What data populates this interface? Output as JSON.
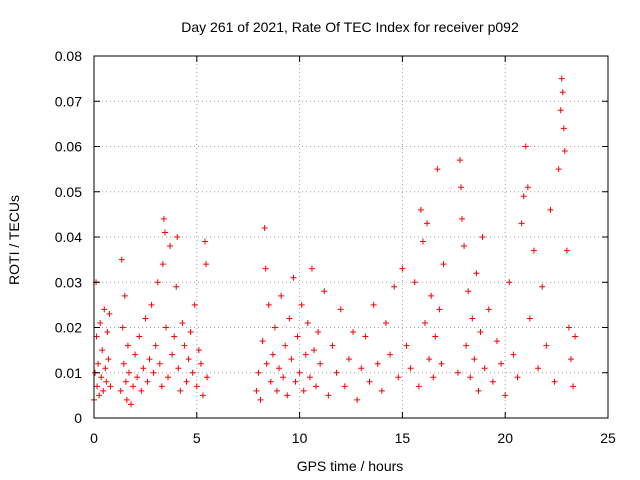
{
  "chart_data": {
    "type": "scatter",
    "title": "Day 261 of 2021, Rate Of TEC Index for receiver p092",
    "xlabel": "GPS time / hours",
    "ylabel": "ROTI / TECUs",
    "xlim": [
      0,
      25
    ],
    "ylim": [
      0,
      0.08
    ],
    "xticks": [
      0,
      5,
      10,
      15,
      20,
      25
    ],
    "xtick_labels": [
      "0",
      "5",
      "10",
      "15",
      "20",
      "25"
    ],
    "yticks": [
      0,
      0.01,
      0.02,
      0.03,
      0.04,
      0.05,
      0.06,
      0.07,
      0.08
    ],
    "ytick_labels": [
      "0",
      "0.01",
      "0.02",
      "0.03",
      "0.04",
      "0.05",
      "0.06",
      "0.07",
      "0.08"
    ],
    "grid": true,
    "marker": "+",
    "color": "#ff0000",
    "series": [
      {
        "name": "ROTI",
        "points": [
          [
            0.0,
            0.004
          ],
          [
            0.05,
            0.01
          ],
          [
            0.1,
            0.03
          ],
          [
            0.12,
            0.018
          ],
          [
            0.15,
            0.007
          ],
          [
            0.2,
            0.012
          ],
          [
            0.25,
            0.005
          ],
          [
            0.3,
            0.021
          ],
          [
            0.35,
            0.009
          ],
          [
            0.4,
            0.015
          ],
          [
            0.45,
            0.006
          ],
          [
            0.5,
            0.024
          ],
          [
            0.55,
            0.011
          ],
          [
            0.6,
            0.008
          ],
          [
            0.65,
            0.019
          ],
          [
            0.7,
            0.013
          ],
          [
            0.75,
            0.023
          ],
          [
            0.8,
            0.007
          ],
          [
            1.3,
            0.006
          ],
          [
            1.35,
            0.035
          ],
          [
            1.4,
            0.02
          ],
          [
            1.45,
            0.012
          ],
          [
            1.5,
            0.027
          ],
          [
            1.55,
            0.008
          ],
          [
            1.6,
            0.004
          ],
          [
            1.65,
            0.016
          ],
          [
            1.7,
            0.01
          ],
          [
            1.8,
            0.003
          ],
          [
            1.9,
            0.007
          ],
          [
            2.0,
            0.014
          ],
          [
            2.1,
            0.009
          ],
          [
            2.2,
            0.018
          ],
          [
            2.3,
            0.006
          ],
          [
            2.4,
            0.011
          ],
          [
            2.5,
            0.022
          ],
          [
            2.6,
            0.008
          ],
          [
            2.7,
            0.013
          ],
          [
            2.8,
            0.025
          ],
          [
            2.9,
            0.01
          ],
          [
            3.0,
            0.016
          ],
          [
            3.1,
            0.03
          ],
          [
            3.2,
            0.012
          ],
          [
            3.3,
            0.007
          ],
          [
            3.35,
            0.034
          ],
          [
            3.4,
            0.044
          ],
          [
            3.45,
            0.041
          ],
          [
            3.5,
            0.02
          ],
          [
            3.6,
            0.009
          ],
          [
            3.7,
            0.038
          ],
          [
            3.8,
            0.014
          ],
          [
            3.9,
            0.018
          ],
          [
            4.0,
            0.029
          ],
          [
            4.05,
            0.04
          ],
          [
            4.1,
            0.011
          ],
          [
            4.2,
            0.006
          ],
          [
            4.3,
            0.021
          ],
          [
            4.4,
            0.016
          ],
          [
            4.5,
            0.008
          ],
          [
            4.6,
            0.013
          ],
          [
            4.7,
            0.019
          ],
          [
            4.8,
            0.01
          ],
          [
            4.9,
            0.025
          ],
          [
            5.0,
            0.007
          ],
          [
            5.1,
            0.015
          ],
          [
            5.2,
            0.012
          ],
          [
            5.3,
            0.005
          ],
          [
            5.4,
            0.039
          ],
          [
            5.45,
            0.034
          ],
          [
            5.5,
            0.009
          ],
          [
            7.9,
            0.006
          ],
          [
            8.0,
            0.01
          ],
          [
            8.1,
            0.004
          ],
          [
            8.2,
            0.017
          ],
          [
            8.3,
            0.042
          ],
          [
            8.35,
            0.033
          ],
          [
            8.4,
            0.012
          ],
          [
            8.5,
            0.025
          ],
          [
            8.6,
            0.008
          ],
          [
            8.7,
            0.014
          ],
          [
            8.8,
            0.02
          ],
          [
            8.9,
            0.006
          ],
          [
            9.0,
            0.011
          ],
          [
            9.1,
            0.027
          ],
          [
            9.2,
            0.009
          ],
          [
            9.3,
            0.016
          ],
          [
            9.4,
            0.005
          ],
          [
            9.5,
            0.022
          ],
          [
            9.6,
            0.013
          ],
          [
            9.7,
            0.031
          ],
          [
            9.8,
            0.008
          ],
          [
            9.9,
            0.018
          ],
          [
            10.0,
            0.01
          ],
          [
            10.1,
            0.025
          ],
          [
            10.2,
            0.006
          ],
          [
            10.3,
            0.014
          ],
          [
            10.4,
            0.021
          ],
          [
            10.5,
            0.009
          ],
          [
            10.6,
            0.033
          ],
          [
            10.7,
            0.015
          ],
          [
            10.8,
            0.007
          ],
          [
            10.9,
            0.019
          ],
          [
            11.0,
            0.012
          ],
          [
            11.2,
            0.028
          ],
          [
            11.4,
            0.005
          ],
          [
            11.6,
            0.016
          ],
          [
            11.8,
            0.01
          ],
          [
            12.0,
            0.024
          ],
          [
            12.2,
            0.007
          ],
          [
            12.4,
            0.013
          ],
          [
            12.6,
            0.019
          ],
          [
            12.8,
            0.004
          ],
          [
            13.0,
            0.011
          ],
          [
            13.2,
            0.018
          ],
          [
            13.4,
            0.008
          ],
          [
            13.6,
            0.025
          ],
          [
            13.8,
            0.012
          ],
          [
            14.0,
            0.006
          ],
          [
            14.2,
            0.021
          ],
          [
            14.4,
            0.014
          ],
          [
            14.6,
            0.029
          ],
          [
            14.8,
            0.009
          ],
          [
            15.0,
            0.033
          ],
          [
            15.2,
            0.016
          ],
          [
            15.4,
            0.011
          ],
          [
            15.6,
            0.03
          ],
          [
            15.8,
            0.007
          ],
          [
            15.9,
            0.046
          ],
          [
            16.0,
            0.039
          ],
          [
            16.1,
            0.021
          ],
          [
            16.2,
            0.043
          ],
          [
            16.3,
            0.013
          ],
          [
            16.4,
            0.027
          ],
          [
            16.5,
            0.009
          ],
          [
            16.6,
            0.018
          ],
          [
            16.7,
            0.055
          ],
          [
            16.8,
            0.024
          ],
          [
            16.9,
            0.012
          ],
          [
            17.0,
            0.034
          ],
          [
            17.7,
            0.01
          ],
          [
            17.8,
            0.057
          ],
          [
            17.85,
            0.051
          ],
          [
            17.9,
            0.044
          ],
          [
            18.0,
            0.038
          ],
          [
            18.1,
            0.016
          ],
          [
            18.2,
            0.028
          ],
          [
            18.3,
            0.009
          ],
          [
            18.4,
            0.022
          ],
          [
            18.5,
            0.013
          ],
          [
            18.6,
            0.032
          ],
          [
            18.7,
            0.006
          ],
          [
            18.8,
            0.019
          ],
          [
            18.9,
            0.04
          ],
          [
            19.0,
            0.011
          ],
          [
            19.2,
            0.024
          ],
          [
            19.4,
            0.008
          ],
          [
            19.6,
            0.017
          ],
          [
            19.8,
            0.012
          ],
          [
            20.0,
            0.005
          ],
          [
            20.2,
            0.03
          ],
          [
            20.4,
            0.014
          ],
          [
            20.6,
            0.009
          ],
          [
            20.8,
            0.043
          ],
          [
            20.9,
            0.049
          ],
          [
            21.0,
            0.06
          ],
          [
            21.1,
            0.051
          ],
          [
            21.2,
            0.022
          ],
          [
            21.4,
            0.037
          ],
          [
            21.6,
            0.011
          ],
          [
            21.8,
            0.029
          ],
          [
            22.0,
            0.016
          ],
          [
            22.2,
            0.046
          ],
          [
            22.4,
            0.008
          ],
          [
            22.6,
            0.055
          ],
          [
            22.7,
            0.068
          ],
          [
            22.75,
            0.075
          ],
          [
            22.8,
            0.072
          ],
          [
            22.85,
            0.064
          ],
          [
            22.9,
            0.059
          ],
          [
            23.0,
            0.037
          ],
          [
            23.1,
            0.02
          ],
          [
            23.2,
            0.013
          ],
          [
            23.3,
            0.007
          ],
          [
            23.4,
            0.018
          ]
        ]
      }
    ]
  }
}
